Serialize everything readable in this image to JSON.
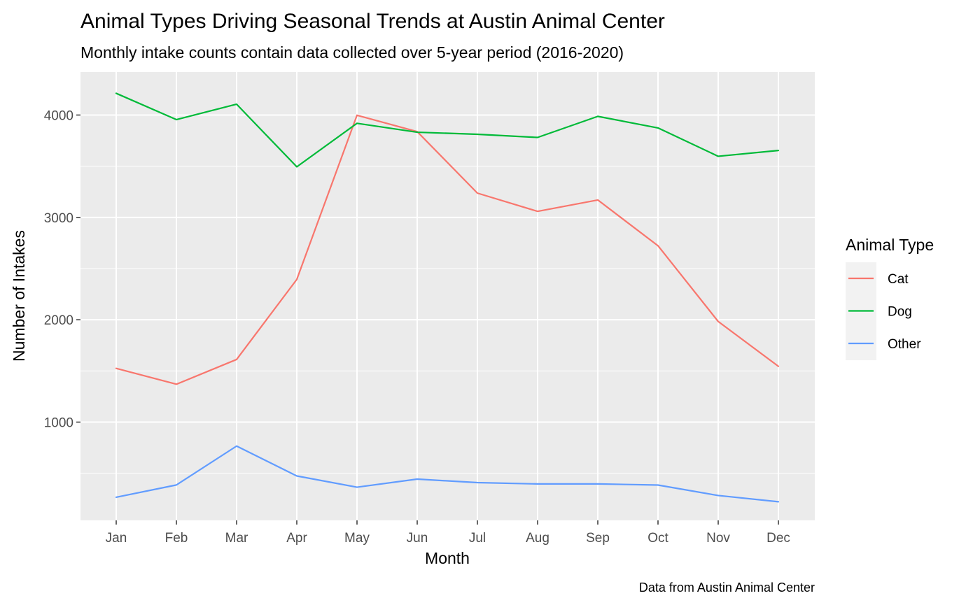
{
  "chart_data": {
    "type": "line",
    "title": "Animal Types Driving Seasonal Trends at Austin Animal Center",
    "subtitle": "Monthly intake counts contain data collected over 5-year period (2016-2020)",
    "xlabel": "Month",
    "ylabel": "Number of Intakes",
    "caption": "Data from Austin Animal Center",
    "categories": [
      "Jan",
      "Feb",
      "Mar",
      "Apr",
      "May",
      "Jun",
      "Jul",
      "Aug",
      "Sep",
      "Oct",
      "Nov",
      "Dec"
    ],
    "ylim": [
      40,
      4420
    ],
    "yticks": [
      1000,
      2000,
      3000,
      4000
    ],
    "grid": true,
    "legend": {
      "title": "Animal Type",
      "position": "right"
    },
    "series": [
      {
        "name": "Cat",
        "color": "#F8766D",
        "values": [
          1525,
          1370,
          1612,
          2394,
          3998,
          3838,
          3237,
          3059,
          3170,
          2723,
          1983,
          1545
        ]
      },
      {
        "name": "Dog",
        "color": "#00BA38",
        "values": [
          4212,
          3955,
          4106,
          3494,
          3919,
          3832,
          3812,
          3781,
          3987,
          3874,
          3597,
          3654
        ]
      },
      {
        "name": "Other",
        "color": "#619CFF",
        "values": [
          266,
          386,
          766,
          474,
          364,
          443,
          409,
          396,
          396,
          385,
          283,
          222
        ]
      }
    ]
  }
}
